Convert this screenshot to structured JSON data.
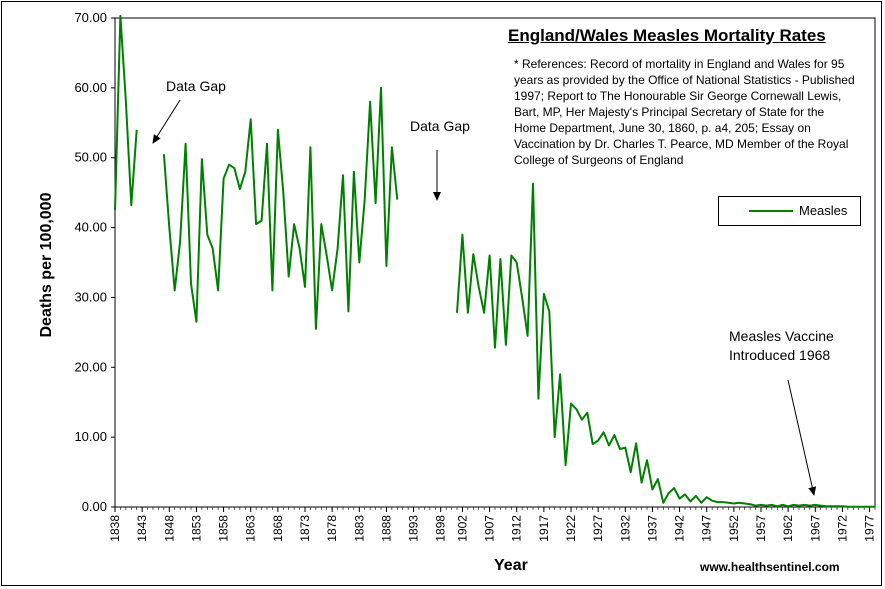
{
  "chart_data": {
    "type": "line",
    "title": "England/Wales Measles Mortality Rates",
    "xlabel": "Year",
    "ylabel": "Deaths per 100,000",
    "xlim": [
      1838,
      1978
    ],
    "ylim": [
      0,
      70
    ],
    "y_ticks": [
      "0.00",
      "10.00",
      "20.00",
      "30.00",
      "40.00",
      "50.00",
      "60.00",
      "70.00"
    ],
    "x_ticks": [
      "1838",
      "1843",
      "1848",
      "1853",
      "1858",
      "1863",
      "1868",
      "1873",
      "1878",
      "1883",
      "1888",
      "1893",
      "1898",
      "1902",
      "1907",
      "1912",
      "1917",
      "1922",
      "1927",
      "1932",
      "1937",
      "1942",
      "1947",
      "1952",
      "1957",
      "1962",
      "1967",
      "1972",
      "1977"
    ],
    "legend": {
      "position": "right",
      "entries": [
        "Measles"
      ]
    },
    "series": [
      {
        "name": "Measles",
        "color": "#008000",
        "segments": [
          [
            [
              1838,
              42.5
            ],
            [
              1839,
              70.3
            ],
            [
              1840,
              58.0
            ],
            [
              1841,
              43.2
            ],
            [
              1842,
              54.0
            ]
          ],
          [
            [
              1847,
              50.5
            ],
            [
              1848,
              40.0
            ],
            [
              1849,
              31.0
            ],
            [
              1850,
              38.0
            ],
            [
              1851,
              52.0
            ],
            [
              1852,
              32.0
            ],
            [
              1853,
              26.5
            ],
            [
              1854,
              49.8
            ],
            [
              1855,
              39.0
            ],
            [
              1856,
              37.0
            ],
            [
              1857,
              31.0
            ],
            [
              1858,
              47.0
            ],
            [
              1859,
              49.0
            ],
            [
              1860,
              48.5
            ],
            [
              1861,
              45.5
            ],
            [
              1862,
              48.0
            ],
            [
              1863,
              55.5
            ],
            [
              1864,
              40.5
            ],
            [
              1865,
              41.0
            ],
            [
              1866,
              52.0
            ],
            [
              1867,
              31.0
            ],
            [
              1868,
              54.0
            ],
            [
              1869,
              45.0
            ],
            [
              1870,
              33.0
            ],
            [
              1871,
              40.5
            ],
            [
              1872,
              37.0
            ],
            [
              1873,
              31.5
            ],
            [
              1874,
              51.5
            ],
            [
              1875,
              25.5
            ],
            [
              1876,
              40.5
            ],
            [
              1877,
              36.0
            ],
            [
              1878,
              31.0
            ],
            [
              1879,
              37.0
            ],
            [
              1880,
              47.5
            ],
            [
              1881,
              28.0
            ],
            [
              1882,
              48.0
            ],
            [
              1883,
              35.0
            ],
            [
              1884,
              44.0
            ],
            [
              1885,
              58.0
            ],
            [
              1886,
              43.5
            ],
            [
              1887,
              60.0
            ],
            [
              1888,
              34.5
            ],
            [
              1889,
              51.5
            ],
            [
              1890,
              44.0
            ]
          ],
          [
            [
              1901,
              27.8
            ],
            [
              1902,
              39.0
            ],
            [
              1903,
              27.8
            ],
            [
              1904,
              36.2
            ],
            [
              1905,
              31.5
            ],
            [
              1906,
              27.8
            ],
            [
              1907,
              36.0
            ],
            [
              1908,
              22.8
            ],
            [
              1909,
              35.5
            ],
            [
              1910,
              23.2
            ],
            [
              1911,
              36.0
            ],
            [
              1912,
              35.0
            ],
            [
              1913,
              30.0
            ],
            [
              1914,
              24.5
            ],
            [
              1915,
              46.3
            ],
            [
              1916,
              15.5
            ],
            [
              1917,
              30.5
            ],
            [
              1918,
              28.0
            ],
            [
              1919,
              10.0
            ],
            [
              1920,
              19.0
            ],
            [
              1921,
              6.0
            ],
            [
              1922,
              14.8
            ],
            [
              1923,
              14.0
            ],
            [
              1924,
              12.5
            ],
            [
              1925,
              13.5
            ],
            [
              1926,
              9.0
            ],
            [
              1927,
              9.5
            ],
            [
              1928,
              10.7
            ],
            [
              1929,
              8.8
            ],
            [
              1930,
              10.3
            ],
            [
              1931,
              8.3
            ],
            [
              1932,
              8.5
            ],
            [
              1933,
              5.0
            ],
            [
              1934,
              9.1
            ],
            [
              1935,
              3.5
            ],
            [
              1936,
              6.7
            ],
            [
              1937,
              2.5
            ],
            [
              1938,
              4.0
            ],
            [
              1939,
              0.6
            ],
            [
              1940,
              2.0
            ],
            [
              1941,
              2.7
            ],
            [
              1942,
              1.2
            ],
            [
              1943,
              1.8
            ],
            [
              1944,
              0.8
            ],
            [
              1945,
              1.6
            ],
            [
              1946,
              0.6
            ],
            [
              1947,
              1.4
            ],
            [
              1948,
              0.9
            ],
            [
              1949,
              0.7
            ],
            [
              1950,
              0.7
            ],
            [
              1951,
              0.6
            ],
            [
              1952,
              0.5
            ],
            [
              1953,
              0.6
            ],
            [
              1954,
              0.5
            ],
            [
              1955,
              0.4
            ],
            [
              1956,
              0.2
            ],
            [
              1957,
              0.3
            ],
            [
              1958,
              0.2
            ],
            [
              1959,
              0.3
            ],
            [
              1960,
              0.1
            ],
            [
              1961,
              0.3
            ],
            [
              1962,
              0.1
            ],
            [
              1963,
              0.3
            ],
            [
              1964,
              0.2
            ],
            [
              1965,
              0.3
            ],
            [
              1966,
              0.2
            ],
            [
              1967,
              0.3
            ],
            [
              1968,
              0.2
            ],
            [
              1969,
              0.1
            ],
            [
              1970,
              0.1
            ],
            [
              1971,
              0.1
            ],
            [
              1972,
              0.1
            ],
            [
              1973,
              0.05
            ],
            [
              1974,
              0.05
            ],
            [
              1975,
              0.05
            ],
            [
              1976,
              0.05
            ],
            [
              1977,
              0.05
            ],
            [
              1978,
              0.03
            ]
          ]
        ]
      }
    ]
  },
  "references": "* References: Record of mortality in England and Wales for 95 years as provided by the Office of National Statistics - Published 1997; Report to The Honourable Sir George Cornewall Lewis, Bart, MP, Her Majesty's Principal Secretary of State for the Home Department, June 30, 1860, p. a4, 205; Essay on Vaccination by Dr. Charles T. Pearce, MD Member of the Royal College of Surgeons of England",
  "annotations": {
    "gap1": "Data Gap",
    "gap2": "Data Gap",
    "vaccine_line1": "Measles Vaccine",
    "vaccine_line2": "Introduced 1968"
  },
  "credit": "www.healthsentinel.com"
}
